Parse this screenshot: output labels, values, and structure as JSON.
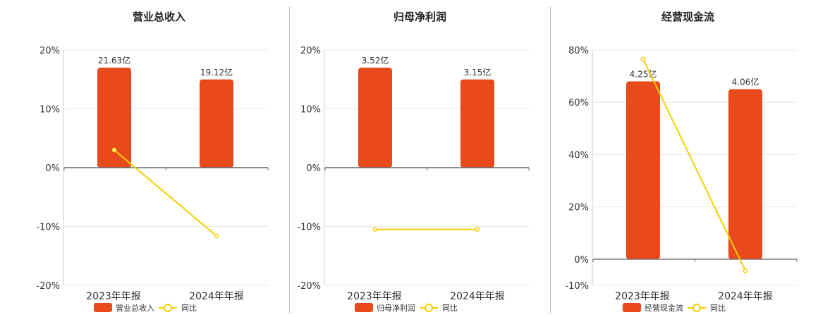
{
  "chart_data": [
    {
      "type": "bar",
      "title": "营业总收入",
      "categories": [
        "2023年年报",
        "2024年年报"
      ],
      "bar_labels": [
        "21.63亿",
        "19.12亿"
      ],
      "bar_values_pct_axis": [
        17,
        15
      ],
      "series": [
        {
          "name": "营业总收入",
          "values": [
            21.63,
            19.12
          ],
          "unit": "亿"
        },
        {
          "name": "同比",
          "type": "line",
          "values": [
            3.0,
            -11.6
          ],
          "unit": "%"
        }
      ],
      "yticks": [
        "20%",
        "10%",
        "0%",
        "-10%",
        "-20%"
      ],
      "ylim": [
        -20,
        20
      ],
      "ytick_values": [
        20,
        10,
        0,
        -10,
        -20
      ],
      "colors": {
        "bar": "#e84a1b",
        "line": "#f2cf00"
      },
      "legend": "bottom"
    },
    {
      "type": "bar",
      "title": "归母净利润",
      "categories": [
        "2023年年报",
        "2024年年报"
      ],
      "bar_labels": [
        "3.52亿",
        "3.15亿"
      ],
      "bar_values_pct_axis": [
        17,
        15
      ],
      "series": [
        {
          "name": "归母净利润",
          "values": [
            3.52,
            3.15
          ],
          "unit": "亿"
        },
        {
          "name": "同比",
          "type": "line",
          "values": [
            -10.5,
            -10.5
          ],
          "unit": "%"
        }
      ],
      "yticks": [
        "20%",
        "10%",
        "0%",
        "-10%",
        "-20%"
      ],
      "ylim": [
        -20,
        20
      ],
      "ytick_values": [
        20,
        10,
        0,
        -10,
        -20
      ],
      "colors": {
        "bar": "#e84a1b",
        "line": "#f2cf00"
      },
      "legend": "bottom"
    },
    {
      "type": "bar",
      "title": "经营现金流",
      "categories": [
        "2023年年报",
        "2024年年报"
      ],
      "bar_labels": [
        "4.25亿",
        "4.06亿"
      ],
      "bar_values_pct_axis": [
        68,
        65
      ],
      "series": [
        {
          "name": "经营现金流",
          "values": [
            4.25,
            4.06
          ],
          "unit": "亿"
        },
        {
          "name": "同比",
          "type": "line",
          "values": [
            76.5,
            -4.4
          ],
          "unit": "%"
        }
      ],
      "yticks": [
        "80%",
        "60%",
        "40%",
        "20%",
        "0%",
        "-10%"
      ],
      "ylim": [
        -10,
        80
      ],
      "ytick_values": [
        80,
        60,
        40,
        20,
        0,
        -10
      ],
      "colors": {
        "bar": "#e84a1b",
        "line": "#f2cf00"
      },
      "legend": "bottom"
    }
  ]
}
